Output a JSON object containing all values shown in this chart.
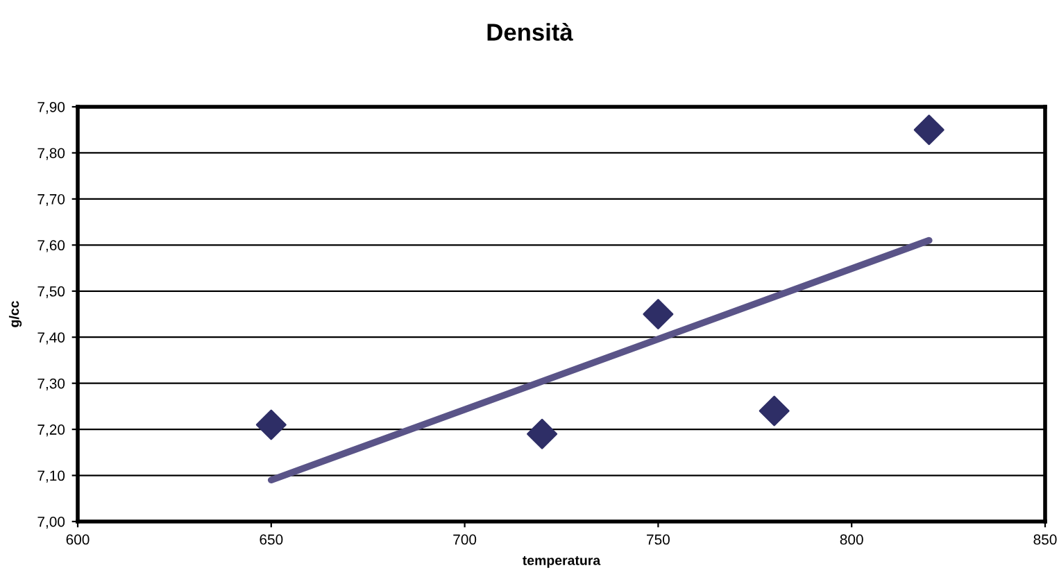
{
  "chart_data": {
    "type": "scatter",
    "title": "Densità",
    "xlabel": "temperatura",
    "ylabel": "g/cc",
    "series": [
      {
        "color": "#2e2e66",
        "marker": "diamond",
        "x": [
          650,
          720,
          750,
          780,
          820
        ],
        "values": [
          7.21,
          7.19,
          7.45,
          7.24,
          7.85
        ]
      },
      {
        "type": "line",
        "color": "#5a5488",
        "marker": "none",
        "x": [
          650,
          820
        ],
        "values": [
          7.09,
          7.61
        ]
      }
    ],
    "xlim": [
      600,
      850
    ],
    "xticks": [
      600,
      650,
      700,
      750,
      800,
      850
    ],
    "ylim": [
      7.0,
      7.9
    ],
    "yticks": [
      {
        "value": 7.0,
        "label": "7,00"
      },
      {
        "value": 7.1,
        "label": "7,10"
      },
      {
        "value": 7.2,
        "label": "7,20"
      },
      {
        "value": 7.3,
        "label": "7,30"
      },
      {
        "value": 7.4,
        "label": "7,40"
      },
      {
        "value": 7.5,
        "label": "7,50"
      },
      {
        "value": 7.6,
        "label": "7,60"
      },
      {
        "value": 7.7,
        "label": "7,70"
      },
      {
        "value": 7.8,
        "label": "7,80"
      },
      {
        "value": 7.9,
        "label": "7,90"
      }
    ],
    "grid": "y",
    "legend": false
  }
}
